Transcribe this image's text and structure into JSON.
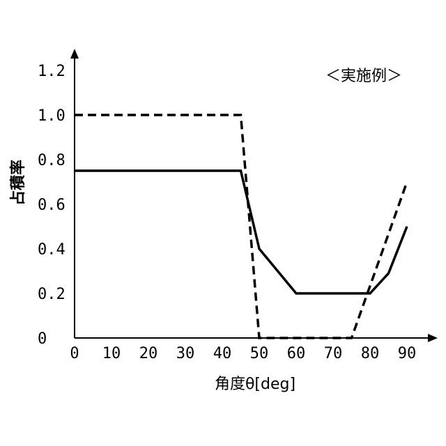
{
  "chart_data": {
    "type": "line",
    "title": "",
    "annotation": "＜実施例＞",
    "xlabel": "角度θ[deg]",
    "ylabel": "占積率",
    "xlim": [
      0,
      95
    ],
    "ylim": [
      0,
      1.25
    ],
    "x_ticks": [
      "0",
      "10",
      "20",
      "30",
      "40",
      "50",
      "60",
      "70",
      "80",
      "90"
    ],
    "y_ticks": [
      "0",
      "0.2",
      "0.4",
      "0.6",
      "0.8",
      "1.0",
      "1.2"
    ],
    "grid": false,
    "legend": false,
    "series": [
      {
        "style": "solid",
        "color": "#000000",
        "x": [
          0,
          45,
          50,
          60,
          80,
          85,
          90
        ],
        "y": [
          0.75,
          0.75,
          0.4,
          0.2,
          0.2,
          0.29,
          0.5
        ]
      },
      {
        "style": "dashed",
        "color": "#000000",
        "x": [
          0,
          45,
          50,
          75,
          90
        ],
        "y": [
          1.0,
          1.0,
          0.0,
          0.0,
          0.7
        ]
      }
    ]
  }
}
